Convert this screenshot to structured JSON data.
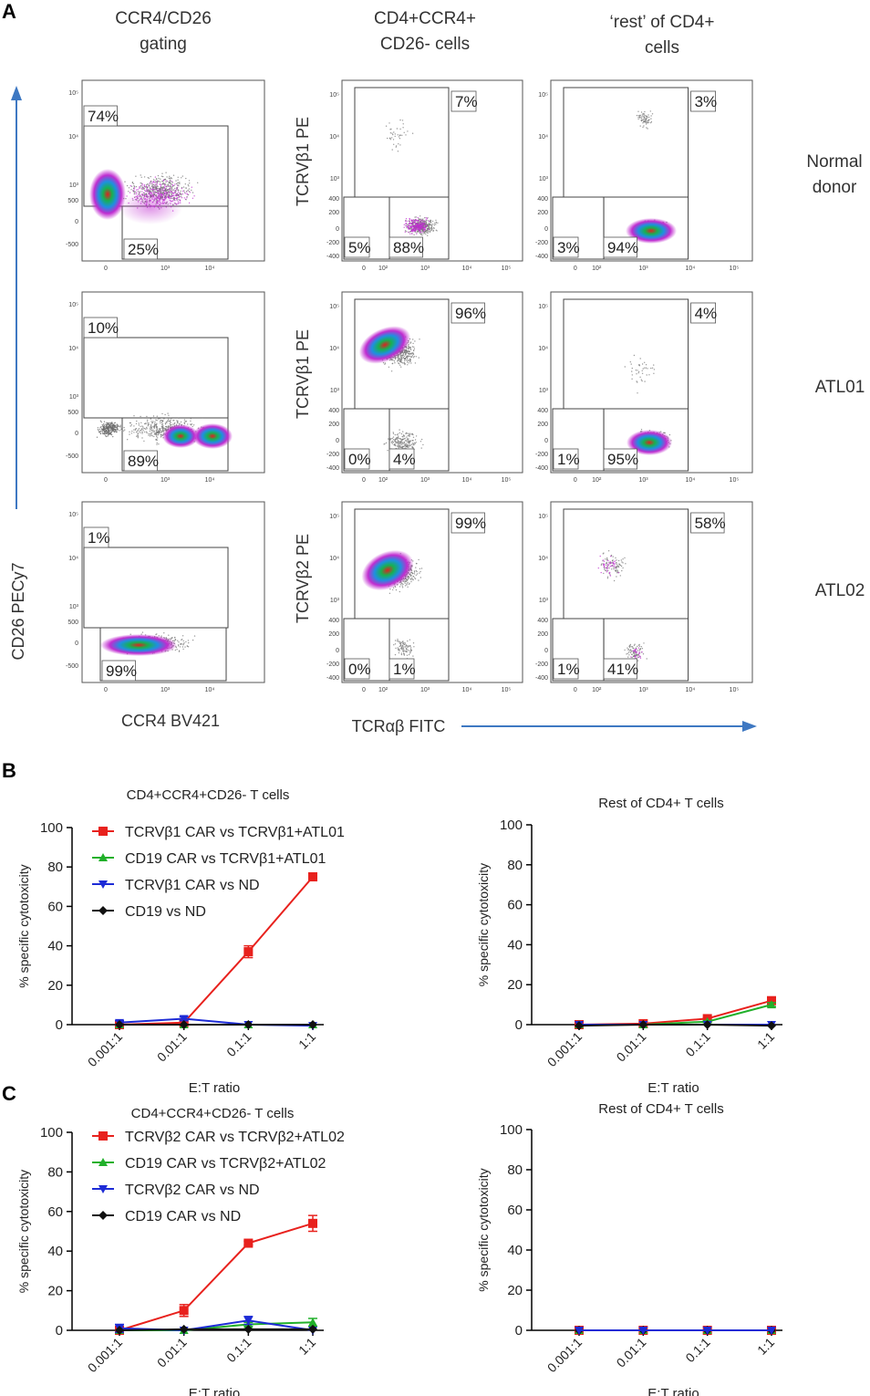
{
  "panel_letters": {
    "a": "A",
    "b": "B",
    "c": "C"
  },
  "flow": {
    "col_titles": [
      [
        "CCR4/CD26",
        "gating"
      ],
      [
        "CD4+CCR4+",
        "CD26- cells"
      ],
      [
        "‘rest’ of CD4+",
        "cells"
      ]
    ],
    "row_labels": [
      [
        "Normal",
        "donor"
      ],
      [
        "ATL01"
      ],
      [
        "ATL02"
      ]
    ],
    "y_axis_title": "CD26 PECy7",
    "x_axis_title_left": "CCR4 BV421",
    "x_axis_title_right": "TCRαβ FITC",
    "middle_y_labels": [
      "TCRVβ1 PE",
      "TCRVβ1 PE",
      "TCRVβ2 PE"
    ],
    "ticks_gate_y": [
      "10⁵",
      "10⁴",
      "10³",
      "500",
      "0",
      "-500"
    ],
    "ticks_gate_x": [
      "0",
      "10³",
      "10⁴"
    ],
    "ticks_tcr_y": [
      "10⁵",
      "10⁴",
      "10³",
      "400",
      "200",
      "0",
      "-200",
      "-400"
    ],
    "ticks_tcr_x": [
      "0",
      "10²",
      "10³",
      "10⁴",
      "10⁵"
    ],
    "percentages": [
      {
        "gate_upper": "74%",
        "gate_lower": "25%",
        "mid_upper": "7%",
        "mid_ll": "5%",
        "mid_lr": "88%",
        "rest_upper": "3%",
        "rest_ll": "3%",
        "rest_lr": "94%"
      },
      {
        "gate_upper": "10%",
        "gate_lower": "89%",
        "mid_upper": "96%",
        "mid_ll": "0%",
        "mid_lr": "4%",
        "rest_upper": "4%",
        "rest_ll": "1%",
        "rest_lr": "95%"
      },
      {
        "gate_upper": "1%",
        "gate_lower": "99%",
        "mid_upper": "99%",
        "mid_ll": "0%",
        "mid_lr": "1%",
        "rest_upper": "58%",
        "rest_ll": "1%",
        "rest_lr": "41%"
      }
    ]
  },
  "colors": {
    "red": "#e8211d",
    "green": "#21b02a",
    "blue": "#1d2bd6",
    "black": "#111111",
    "arrow": "#3e78c2"
  },
  "chart_data": [
    {
      "panel": "B",
      "type": "line",
      "title": "CD4+CCR4+CD26- T cells",
      "categories": [
        "0.001:1",
        "0.01:1",
        "0.1:1",
        "1:1"
      ],
      "xlabel": "E:T ratio",
      "ylabel": "% specific cytotoxicity",
      "ylim": [
        0,
        100
      ],
      "yticks": [
        "0",
        "20",
        "40",
        "60",
        "80",
        "100"
      ],
      "legend_placement": "top-left",
      "series": [
        {
          "name": "TCRVβ1 CAR vs TCRVβ1+ATL01",
          "color": "#e8211d",
          "marker": "square",
          "values": [
            0,
            1,
            37,
            75
          ],
          "errors": [
            0,
            0.5,
            3,
            1.5
          ]
        },
        {
          "name": "CD19 CAR vs TCRVβ1+ATL01",
          "color": "#21b02a",
          "marker": "triangle-up",
          "values": [
            0,
            0,
            0,
            0
          ],
          "errors": [
            0,
            0,
            0,
            0
          ]
        },
        {
          "name": "TCRVβ1 CAR vs ND",
          "color": "#1d2bd6",
          "marker": "triangle-down",
          "values": [
            1,
            3,
            0,
            -0.5
          ],
          "errors": [
            1,
            1,
            0,
            0
          ]
        },
        {
          "name": "CD19 vs ND",
          "color": "#111111",
          "marker": "diamond",
          "values": [
            0,
            0,
            0,
            0
          ],
          "errors": [
            0,
            0,
            0,
            0
          ]
        }
      ]
    },
    {
      "panel": "B",
      "type": "line",
      "title": "Rest of CD4+ T cells",
      "categories": [
        "0.001:1",
        "0.01:1",
        "0.1:1",
        "1:1"
      ],
      "xlabel": "E:T ratio",
      "ylabel": "% specific cytotoxicity",
      "ylim": [
        0,
        100
      ],
      "yticks": [
        "0",
        "20",
        "40",
        "60",
        "80",
        "100"
      ],
      "series": [
        {
          "name": "TCRVβ1 CAR vs TCRVβ1+ATL01",
          "color": "#e8211d",
          "marker": "square",
          "values": [
            0,
            0.5,
            3,
            12
          ],
          "errors": [
            0,
            0,
            0.5,
            1
          ]
        },
        {
          "name": "CD19 CAR vs TCRVβ1+ATL01",
          "color": "#21b02a",
          "marker": "triangle-up",
          "values": [
            0,
            0,
            1.5,
            10
          ],
          "errors": [
            0,
            0,
            0.5,
            1
          ]
        },
        {
          "name": "TCRVβ1 CAR vs ND",
          "color": "#1d2bd6",
          "marker": "triangle-down",
          "values": [
            0,
            0,
            0,
            0
          ],
          "errors": [
            0,
            0,
            0,
            0
          ]
        },
        {
          "name": "CD19 vs ND",
          "color": "#111111",
          "marker": "diamond",
          "values": [
            -0.5,
            0,
            0,
            -0.5
          ],
          "errors": [
            0,
            0,
            0,
            0
          ]
        }
      ]
    },
    {
      "panel": "C",
      "type": "line",
      "title": "CD4+CCR4+CD26- T cells",
      "categories": [
        "0.001:1",
        "0.01:1",
        "0.1:1",
        "1:1"
      ],
      "xlabel": "E:T ratio",
      "ylabel": "% specific cytotoxicity",
      "ylim": [
        0,
        100
      ],
      "yticks": [
        "0",
        "20",
        "40",
        "60",
        "80",
        "100"
      ],
      "legend_placement": "top-left",
      "series": [
        {
          "name": "TCRVβ2 CAR vs TCRVβ2+ATL02",
          "color": "#e8211d",
          "marker": "square",
          "values": [
            0,
            10,
            44,
            54
          ],
          "errors": [
            0,
            3,
            1,
            4
          ]
        },
        {
          "name": "CD19 CAR vs TCRVβ2+ATL02",
          "color": "#21b02a",
          "marker": "triangle-up",
          "values": [
            0,
            0,
            3,
            4
          ],
          "errors": [
            0,
            0,
            1,
            2
          ]
        },
        {
          "name": "TCRVβ2 CAR vs ND",
          "color": "#1d2bd6",
          "marker": "triangle-down",
          "values": [
            1,
            0,
            5,
            0
          ],
          "errors": [
            2,
            0,
            2,
            0
          ]
        },
        {
          "name": "CD19 CAR vs ND",
          "color": "#111111",
          "marker": "diamond",
          "values": [
            0,
            0.5,
            0.5,
            0.5
          ],
          "errors": [
            0,
            0,
            0,
            0
          ]
        }
      ]
    },
    {
      "panel": "C",
      "type": "line",
      "title": "Rest of CD4+ T cells",
      "categories": [
        "0.001:1",
        "0.01:1",
        "0.1:1",
        "1:1"
      ],
      "xlabel": "E:T ratio",
      "ylabel": "% specific cytotoxicity",
      "ylim": [
        0,
        100
      ],
      "yticks": [
        "0",
        "20",
        "40",
        "60",
        "80",
        "100"
      ],
      "series": [
        {
          "name": "TCRVβ2 CAR vs TCRVβ2+ATL02",
          "color": "#e8211d",
          "marker": "square",
          "values": [
            0,
            0,
            0,
            0
          ],
          "errors": [
            0,
            0,
            0,
            0
          ]
        },
        {
          "name": "CD19 CAR vs TCRVβ2+ATL02",
          "color": "#21b02a",
          "marker": "triangle-up",
          "values": [
            0,
            0,
            0,
            0
          ],
          "errors": [
            0,
            0,
            0,
            0
          ]
        },
        {
          "name": "CD19 CAR vs ND",
          "color": "#111111",
          "marker": "diamond",
          "values": [
            0,
            0,
            0,
            0
          ],
          "errors": [
            0,
            0,
            0,
            0
          ]
        },
        {
          "name": "TCRVβ2 CAR vs ND",
          "color": "#1d2bd6",
          "marker": "triangle-down",
          "values": [
            0,
            0,
            0,
            0
          ],
          "errors": [
            0,
            0,
            0,
            0
          ]
        }
      ]
    }
  ]
}
